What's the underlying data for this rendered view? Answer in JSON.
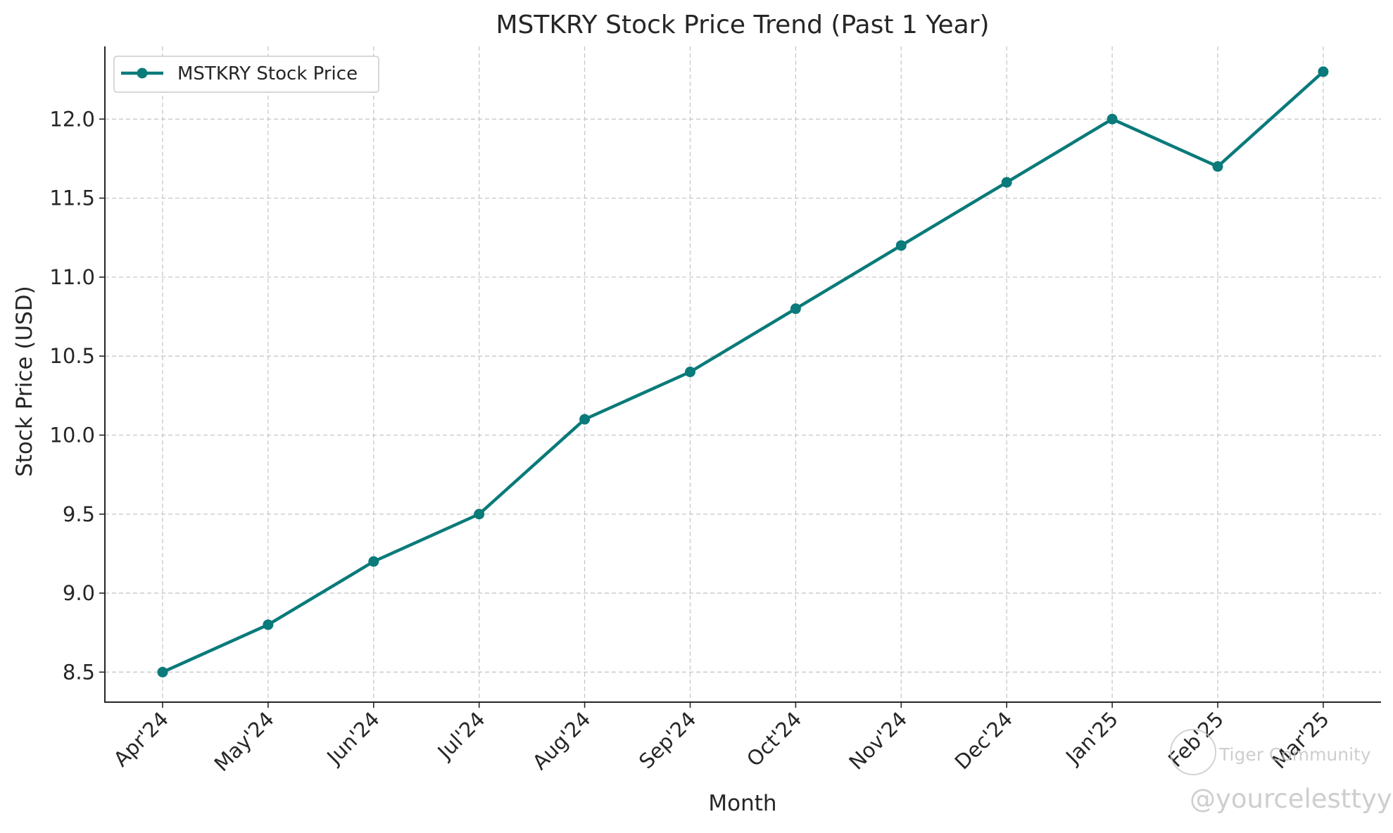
{
  "chart_data": {
    "type": "line",
    "title": "MSTKRY Stock Price Trend (Past 1 Year)",
    "xlabel": "Month",
    "ylabel": "Stock Price (USD)",
    "categories": [
      "Apr'24",
      "May'24",
      "Jun'24",
      "Jul'24",
      "Aug'24",
      "Sep'24",
      "Oct'24",
      "Nov'24",
      "Dec'24",
      "Jan'25",
      "Feb'25",
      "Mar'25"
    ],
    "series": [
      {
        "name": "MSTKRY Stock Price",
        "color": "#0a7a7a",
        "marker": "circle",
        "values": [
          8.5,
          8.8,
          9.2,
          9.5,
          10.1,
          10.4,
          10.8,
          11.2,
          11.6,
          12.0,
          11.7,
          12.3
        ]
      }
    ],
    "ylim": [
      8.31,
      12.46
    ],
    "yticks": [
      8.5,
      9.0,
      9.5,
      10.0,
      10.5,
      11.0,
      11.5,
      12.0
    ],
    "ytick_labels": [
      "8.5",
      "9.0",
      "9.5",
      "10.0",
      "10.5",
      "11.0",
      "11.5",
      "12.0"
    ],
    "grid": true,
    "grid_style": "dashed",
    "legend_position": "top-left"
  },
  "watermark": {
    "brand": "Tiger Community",
    "handle": "@yourcelesttyy"
  }
}
